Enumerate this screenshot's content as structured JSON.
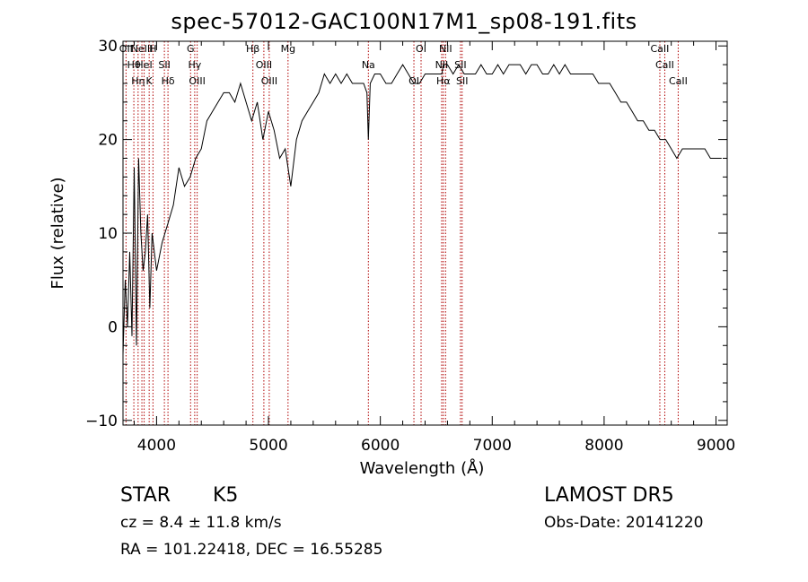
{
  "chart_data": {
    "type": "line",
    "title": "spec-57012-GAC100N17M1_sp08-191.fits",
    "xlabel": "Wavelength (Å)",
    "ylabel": "Flux (relative)",
    "xlim": [
      3700,
      9100
    ],
    "ylim": [
      -10.5,
      30.5
    ],
    "xticks": [
      4000,
      5000,
      6000,
      7000,
      8000,
      9000
    ],
    "yticks": [
      -10,
      0,
      10,
      20,
      30
    ],
    "grid": false,
    "line_color": "#000000",
    "marker_color": "#b00000",
    "series": [
      {
        "x": [
          3700,
          3720,
          3740,
          3760,
          3780,
          3800,
          3820,
          3840,
          3860,
          3880,
          3900,
          3920,
          3940,
          3960,
          3980,
          4000,
          4050,
          4100,
          4150,
          4200,
          4250,
          4300,
          4350,
          4400,
          4450,
          4500,
          4550,
          4600,
          4650,
          4700,
          4750,
          4800,
          4850,
          4900,
          4950,
          5000,
          5050,
          5100,
          5150,
          5175,
          5200,
          5250,
          5300,
          5350,
          5400,
          5450,
          5500,
          5550,
          5600,
          5650,
          5700,
          5750,
          5800,
          5850,
          5880,
          5893,
          5910,
          5950,
          6000,
          6050,
          6100,
          6150,
          6200,
          6250,
          6300,
          6350,
          6400,
          6450,
          6500,
          6550,
          6563,
          6600,
          6650,
          6700,
          6750,
          6800,
          6850,
          6900,
          6950,
          7000,
          7050,
          7100,
          7150,
          7200,
          7250,
          7300,
          7350,
          7400,
          7450,
          7500,
          7550,
          7600,
          7650,
          7700,
          7750,
          7800,
          7850,
          7900,
          7950,
          8000,
          8050,
          8100,
          8150,
          8200,
          8250,
          8300,
          8350,
          8400,
          8450,
          8500,
          8550,
          8600,
          8650,
          8700,
          8750,
          8800,
          8850,
          8900,
          8950,
          9000,
          9050
        ],
        "y": [
          -3,
          5,
          0,
          8,
          -1,
          17,
          -2,
          18,
          10,
          6,
          8,
          12,
          2,
          10,
          8,
          6,
          9,
          11,
          13,
          17,
          15,
          16,
          18,
          19,
          22,
          23,
          24,
          25,
          25,
          24,
          26,
          24,
          22,
          24,
          20,
          23,
          21,
          18,
          19,
          17,
          15,
          20,
          22,
          23,
          24,
          25,
          27,
          26,
          27,
          26,
          27,
          26,
          26,
          26,
          25,
          20,
          26,
          27,
          27,
          26,
          26,
          27,
          28,
          27,
          26,
          26,
          27,
          27,
          27,
          27,
          28,
          28,
          27,
          28,
          27,
          27,
          27,
          28,
          27,
          27,
          28,
          27,
          28,
          28,
          28,
          27,
          28,
          28,
          27,
          27,
          28,
          27,
          28,
          27,
          27,
          27,
          27,
          27,
          26,
          26,
          26,
          25,
          24,
          24,
          23,
          22,
          22,
          21,
          21,
          20,
          20,
          19,
          18,
          19,
          19,
          19,
          19,
          19,
          18,
          18,
          18
        ]
      }
    ],
    "lines": [
      {
        "x": 3727,
        "label": "OII"
      },
      {
        "x": 3797,
        "label": "Hθ"
      },
      {
        "x": 3835,
        "label": "Hη"
      },
      {
        "x": 3869,
        "label": "NeIII"
      },
      {
        "x": 3889,
        "label": "HeI"
      },
      {
        "x": 3934,
        "label": "K"
      },
      {
        "x": 3968,
        "label": "H"
      },
      {
        "x": 4070,
        "label": "SII"
      },
      {
        "x": 4102,
        "label": "Hδ"
      },
      {
        "x": 4304,
        "label": "G"
      },
      {
        "x": 4341,
        "label": "Hγ"
      },
      {
        "x": 4363,
        "label": "OIII"
      },
      {
        "x": 4861,
        "label": "Hβ"
      },
      {
        "x": 4959,
        "label": "OIII"
      },
      {
        "x": 5007,
        "label": "OIII"
      },
      {
        "x": 5175,
        "label": "Mg"
      },
      {
        "x": 5893,
        "label": "Na"
      },
      {
        "x": 6300,
        "label": "OI"
      },
      {
        "x": 6364,
        "label": "OI"
      },
      {
        "x": 6548,
        "label": "NII"
      },
      {
        "x": 6563,
        "label": "Hα"
      },
      {
        "x": 6583,
        "label": "NII"
      },
      {
        "x": 6716,
        "label": "SII"
      },
      {
        "x": 6731,
        "label": "SII"
      },
      {
        "x": 8498,
        "label": "CaII"
      },
      {
        "x": 8542,
        "label": "CaII"
      },
      {
        "x": 8662,
        "label": "CaII"
      }
    ]
  },
  "info": {
    "class": "STAR",
    "subclass": "K5",
    "cz": "cz = 8.4 ± 11.8 km/s",
    "radec": "RA = 101.22418, DEC =  16.55285",
    "survey": "LAMOST DR5",
    "obsdate": "Obs-Date: 20141220"
  }
}
